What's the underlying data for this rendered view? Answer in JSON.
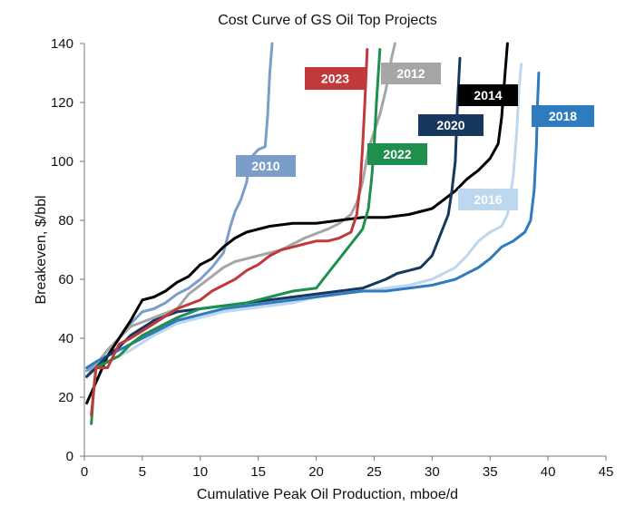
{
  "chart_data": {
    "type": "line",
    "title": "Cost Curve of GS Oil Top Projects",
    "xlabel": "Cumulative Peak Oil Production, mboe/d",
    "ylabel": "Breakeven, $/bbl",
    "xlim": [
      0,
      45
    ],
    "ylim": [
      0,
      140
    ],
    "xticks": [
      "0",
      "5",
      "10",
      "15",
      "20",
      "25",
      "30",
      "35",
      "40",
      "45"
    ],
    "yticks": [
      "0",
      "20",
      "40",
      "60",
      "80",
      "100",
      "120",
      "140"
    ],
    "grid": false,
    "legend": "direct-labels",
    "series": [
      {
        "name": "2010",
        "color": "#7b9dc9",
        "points": [
          [
            0.2,
            29
          ],
          [
            1,
            31
          ],
          [
            2,
            36
          ],
          [
            3,
            40
          ],
          [
            4,
            45
          ],
          [
            5,
            49
          ],
          [
            6,
            50
          ],
          [
            7,
            52
          ],
          [
            8,
            55
          ],
          [
            9,
            57
          ],
          [
            10,
            60
          ],
          [
            11,
            64
          ],
          [
            12,
            69
          ],
          [
            12.6,
            78
          ],
          [
            13,
            83
          ],
          [
            13.5,
            87
          ],
          [
            14,
            93
          ],
          [
            14.3,
            101
          ],
          [
            15,
            104
          ],
          [
            15.6,
            105
          ],
          [
            15.8,
            115
          ],
          [
            16,
            130
          ],
          [
            16.2,
            140
          ]
        ]
      },
      {
        "name": "2012",
        "color": "#a6a6a6",
        "points": [
          [
            0.2,
            27
          ],
          [
            1,
            31
          ],
          [
            2,
            36
          ],
          [
            3,
            40
          ],
          [
            4,
            44
          ],
          [
            6,
            47
          ],
          [
            8,
            50
          ],
          [
            9,
            55
          ],
          [
            10,
            58
          ],
          [
            11,
            61
          ],
          [
            12,
            64
          ],
          [
            13,
            66
          ],
          [
            15,
            68
          ],
          [
            17,
            70
          ],
          [
            19,
            74
          ],
          [
            21,
            77
          ],
          [
            22,
            79
          ],
          [
            23,
            82
          ],
          [
            23.5,
            86
          ],
          [
            24,
            93
          ],
          [
            24.5,
            104
          ],
          [
            25.5,
            116
          ],
          [
            26,
            124
          ],
          [
            26.5,
            135
          ],
          [
            26.8,
            140
          ]
        ]
      },
      {
        "name": "2014",
        "color": "#000000",
        "points": [
          [
            0.2,
            18
          ],
          [
            1,
            25
          ],
          [
            2,
            34
          ],
          [
            3,
            40
          ],
          [
            4,
            46
          ],
          [
            5,
            53
          ],
          [
            6,
            54
          ],
          [
            7,
            56
          ],
          [
            8,
            59
          ],
          [
            9,
            61
          ],
          [
            10,
            65
          ],
          [
            11,
            67
          ],
          [
            12,
            71
          ],
          [
            13,
            74
          ],
          [
            14,
            76
          ],
          [
            16,
            78
          ],
          [
            18,
            79
          ],
          [
            20,
            79
          ],
          [
            22,
            80
          ],
          [
            24,
            81
          ],
          [
            26,
            81
          ],
          [
            28,
            82
          ],
          [
            30,
            84
          ],
          [
            31,
            87
          ],
          [
            32,
            90
          ],
          [
            33,
            94
          ],
          [
            34,
            97
          ],
          [
            35,
            101
          ],
          [
            35.7,
            106
          ],
          [
            36,
            115
          ],
          [
            36.3,
            130
          ],
          [
            36.5,
            140
          ]
        ]
      },
      {
        "name": "2016",
        "color": "#bcd7ee",
        "points": [
          [
            0.2,
            27
          ],
          [
            1,
            30
          ],
          [
            2,
            32
          ],
          [
            4,
            36
          ],
          [
            6,
            41
          ],
          [
            8,
            45
          ],
          [
            10,
            47
          ],
          [
            12,
            49
          ],
          [
            14,
            50
          ],
          [
            16,
            51
          ],
          [
            18,
            52
          ],
          [
            20,
            54
          ],
          [
            22,
            55
          ],
          [
            24,
            56
          ],
          [
            26,
            57
          ],
          [
            28,
            58
          ],
          [
            30,
            60
          ],
          [
            32,
            64
          ],
          [
            33,
            68
          ],
          [
            34,
            73
          ],
          [
            35,
            76
          ],
          [
            36,
            78
          ],
          [
            36.5,
            82
          ],
          [
            37,
            95
          ],
          [
            37.3,
            110
          ],
          [
            37.5,
            125
          ],
          [
            37.7,
            133
          ]
        ]
      },
      {
        "name": "2018",
        "color": "#2f7bbf",
        "points": [
          [
            0.2,
            30
          ],
          [
            1,
            32
          ],
          [
            2,
            34
          ],
          [
            4,
            38
          ],
          [
            6,
            42
          ],
          [
            8,
            46
          ],
          [
            10,
            48
          ],
          [
            12,
            50
          ],
          [
            14,
            51
          ],
          [
            16,
            52
          ],
          [
            18,
            53
          ],
          [
            20,
            54
          ],
          [
            22,
            55
          ],
          [
            24,
            56
          ],
          [
            26,
            56
          ],
          [
            28,
            57
          ],
          [
            30,
            58
          ],
          [
            32,
            60
          ],
          [
            34,
            64
          ],
          [
            35,
            67
          ],
          [
            36,
            71
          ],
          [
            37,
            73
          ],
          [
            38,
            76
          ],
          [
            38.5,
            80
          ],
          [
            38.8,
            90
          ],
          [
            39,
            105
          ],
          [
            39.1,
            120
          ],
          [
            39.2,
            130
          ]
        ]
      },
      {
        "name": "2020",
        "color": "#16375e",
        "points": [
          [
            0.2,
            27
          ],
          [
            1,
            30
          ],
          [
            2,
            34
          ],
          [
            3,
            37
          ],
          [
            4,
            41
          ],
          [
            6,
            46
          ],
          [
            8,
            49
          ],
          [
            10,
            50
          ],
          [
            12,
            51
          ],
          [
            14,
            52
          ],
          [
            16,
            53
          ],
          [
            18,
            54
          ],
          [
            20,
            55
          ],
          [
            22,
            56
          ],
          [
            24,
            57
          ],
          [
            26,
            60
          ],
          [
            27,
            62
          ],
          [
            28,
            63
          ],
          [
            29,
            64
          ],
          [
            30,
            68
          ],
          [
            30.5,
            73
          ],
          [
            31,
            78
          ],
          [
            31.4,
            82
          ],
          [
            31.7,
            90
          ],
          [
            32,
            100
          ],
          [
            32.2,
            120
          ],
          [
            32.4,
            135
          ]
        ]
      },
      {
        "name": "2022",
        "color": "#1f8f4d",
        "points": [
          [
            0.6,
            11
          ],
          [
            0.8,
            22
          ],
          [
            1,
            30
          ],
          [
            2,
            32
          ],
          [
            3,
            34
          ],
          [
            4,
            38
          ],
          [
            5,
            41
          ],
          [
            6,
            43
          ],
          [
            8,
            47
          ],
          [
            10,
            50
          ],
          [
            12,
            51
          ],
          [
            14,
            52
          ],
          [
            16,
            54
          ],
          [
            18,
            56
          ],
          [
            20,
            57
          ],
          [
            21,
            62
          ],
          [
            22,
            67
          ],
          [
            23,
            72
          ],
          [
            24,
            77
          ],
          [
            24.5,
            84
          ],
          [
            24.8,
            95
          ],
          [
            25,
            105
          ],
          [
            25.2,
            120
          ],
          [
            25.5,
            138
          ]
        ]
      },
      {
        "name": "2023",
        "color": "#c0393b",
        "points": [
          [
            0.6,
            14
          ],
          [
            0.8,
            22
          ],
          [
            1,
            30
          ],
          [
            2,
            30
          ],
          [
            3,
            38
          ],
          [
            4,
            40
          ],
          [
            6,
            45
          ],
          [
            8,
            50
          ],
          [
            10,
            53
          ],
          [
            11,
            56
          ],
          [
            12,
            58
          ],
          [
            13,
            60
          ],
          [
            14,
            63
          ],
          [
            15,
            65
          ],
          [
            16,
            68
          ],
          [
            17,
            70
          ],
          [
            18,
            71
          ],
          [
            19,
            72
          ],
          [
            20,
            73
          ],
          [
            21,
            73
          ],
          [
            22,
            74
          ],
          [
            23,
            76
          ],
          [
            23.5,
            82
          ],
          [
            23.8,
            92
          ],
          [
            24,
            105
          ],
          [
            24.2,
            120
          ],
          [
            24.4,
            138
          ]
        ]
      }
    ],
    "labels": [
      {
        "series": "2010",
        "text": "2010",
        "bg": "#7b9dc9"
      },
      {
        "series": "2012",
        "text": "2012",
        "bg": "#a6a6a6"
      },
      {
        "series": "2014",
        "text": "2014",
        "bg": "#000000"
      },
      {
        "series": "2016",
        "text": "2016",
        "bg": "#bcd7ee"
      },
      {
        "series": "2018",
        "text": "2018",
        "bg": "#2f7bbf"
      },
      {
        "series": "2020",
        "text": "2020",
        "bg": "#16375e"
      },
      {
        "series": "2022",
        "text": "2022",
        "bg": "#1f8f4d"
      },
      {
        "series": "2023",
        "text": "2023",
        "bg": "#c0393b"
      }
    ]
  }
}
